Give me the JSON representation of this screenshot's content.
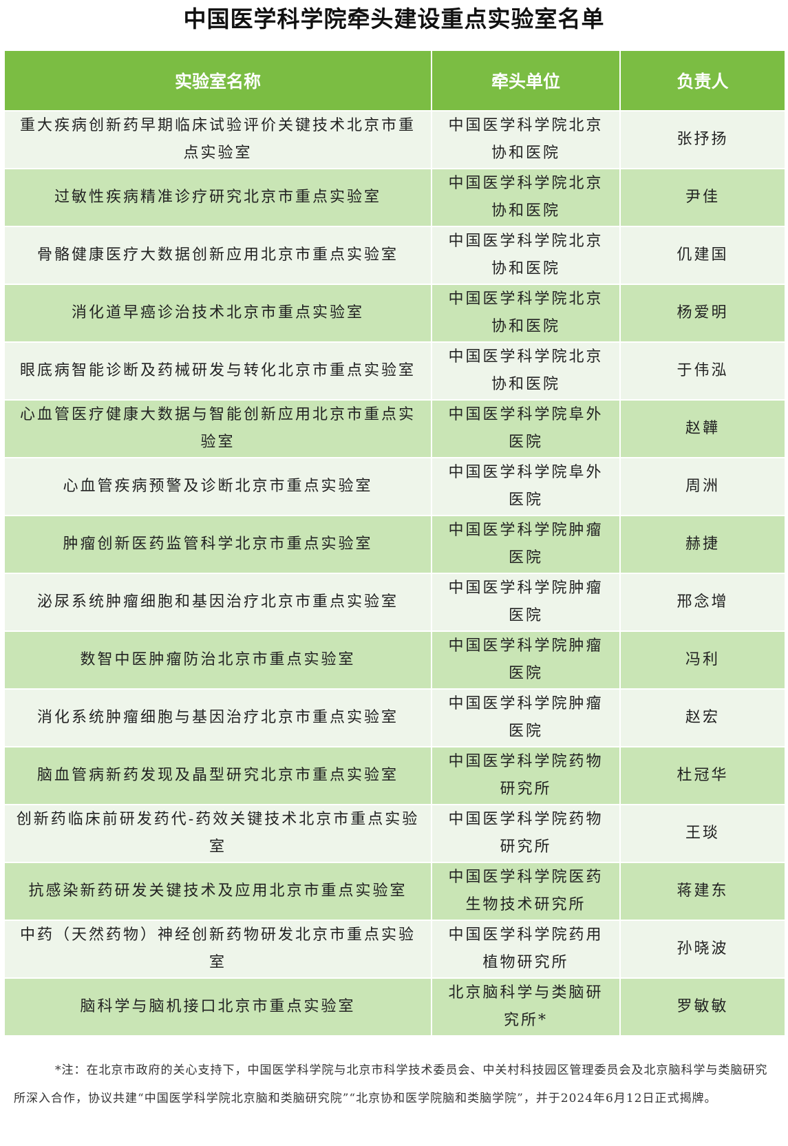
{
  "title": "中国医学科学院牵头建设重点实验室名单",
  "columns": [
    "实验室名称",
    "牵头单位",
    "负责人"
  ],
  "rows": [
    [
      "重大疾病创新药早期临床试验评价关键技术北京市重点实验室",
      "中国医学科学院北京协和医院",
      "张抒扬"
    ],
    [
      "过敏性疾病精准诊疗研究北京市重点实验室",
      "中国医学科学院北京协和医院",
      "尹佳"
    ],
    [
      "骨骼健康医疗大数据创新应用北京市重点实验室",
      "中国医学科学院北京协和医院",
      "仉建国"
    ],
    [
      "消化道早癌诊治技术北京市重点实验室",
      "中国医学科学院北京协和医院",
      "杨爱明"
    ],
    [
      "眼底病智能诊断及药械研发与转化北京市重点实验室",
      "中国医学科学院北京协和医院",
      "于伟泓"
    ],
    [
      "心血管医疗健康大数据与智能创新应用北京市重点实验室",
      "中国医学科学院阜外医院",
      "赵韡"
    ],
    [
      "心血管疾病预警及诊断北京市重点实验室",
      "中国医学科学院阜外医院",
      "周洲"
    ],
    [
      "肿瘤创新医药监管科学北京市重点实验室",
      "中国医学科学院肿瘤医院",
      "赫捷"
    ],
    [
      "泌尿系统肿瘤细胞和基因治疗北京市重点实验室",
      "中国医学科学院肿瘤医院",
      "邢念增"
    ],
    [
      "数智中医肿瘤防治北京市重点实验室",
      "中国医学科学院肿瘤医院",
      "冯利"
    ],
    [
      "消化系统肿瘤细胞与基因治疗北京市重点实验室",
      "中国医学科学院肿瘤医院",
      "赵宏"
    ],
    [
      "脑血管病新药发现及晶型研究北京市重点实验室",
      "中国医学科学院药物研究所",
      "杜冠华"
    ],
    [
      "创新药临床前研发药代-药效关键技术北京市重点实验室",
      "中国医学科学院药物研究所",
      "王琰"
    ],
    [
      "抗感染新药研发关键技术及应用北京市重点实验室",
      "中国医学科学院医药生物技术研究所",
      "蒋建东"
    ],
    [
      "中药（天然药物）神经创新药物研发北京市重点实验室",
      "中国医学科学院药用植物研究所",
      "孙晓波"
    ],
    [
      "脑科学与脑机接口北京市重点实验室",
      "北京脑科学与类脑研究所*",
      "罗敏敏"
    ]
  ],
  "note": "*注：在北京市政府的关心支持下，中国医学科学院与北京市科学技术委员会、中关村科技园区管理委员会及北京脑科学与类脑研究所深入合作，协议共建“中国医学科学院北京脑和类脑研究院”“北京协和医学院脑和类脑学院”，并于2024年6月12日正式揭牌。",
  "colors": {
    "header": "#7bbd43",
    "row_light": "#eef5ea",
    "row_green": "#c9e5b5"
  }
}
